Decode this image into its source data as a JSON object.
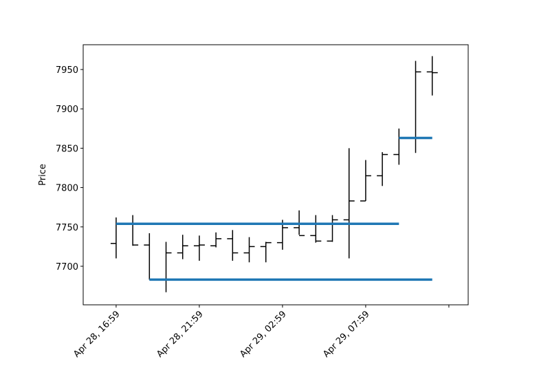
{
  "chart_data": {
    "type": "ohlc",
    "ylabel": "Price",
    "categories": [
      "Apr 28, 16:59",
      null,
      null,
      null,
      null,
      "Apr 28, 21:59",
      null,
      null,
      null,
      null,
      "Apr 29, 02:59",
      null,
      null,
      null,
      null,
      "Apr 29, 07:59",
      null,
      null,
      null,
      null
    ],
    "open": [
      7729,
      7754,
      7727,
      7683,
      7717,
      7726,
      7726,
      7735,
      7717,
      7725,
      7730,
      7749,
      7739,
      7732,
      7759,
      7783,
      7815,
      7842,
      7863,
      7947
    ],
    "high": [
      7762,
      7765,
      7742,
      7731,
      7740,
      7739,
      7743,
      7746,
      7737,
      7731,
      7759,
      7771,
      7765,
      7765,
      7850,
      7835,
      7845,
      7875,
      7961,
      7967
    ],
    "low": [
      7710,
      7726,
      7683,
      7667,
      7709,
      7707,
      7724,
      7707,
      7705,
      7705,
      7721,
      7740,
      7730,
      7731,
      7710,
      7783,
      7802,
      7829,
      7844,
      7917
    ],
    "close": [
      7754,
      7727,
      7683,
      7717,
      7726,
      7727,
      7735,
      7717,
      7725,
      7730,
      7749,
      7739,
      7732,
      7759,
      7783,
      7815,
      7842,
      7863,
      7947,
      7946
    ],
    "color": "#000000",
    "hlines": [
      {
        "value": 7754,
        "from": 0,
        "to": 17
      },
      {
        "value": 7683,
        "from": 2,
        "to": 19
      },
      {
        "value": 7863,
        "from": 17,
        "to": 19
      }
    ],
    "hline_color": "#1f77b4",
    "ylim": [
      7651,
      7981.5
    ],
    "yticks": [
      7700,
      7750,
      7800,
      7850,
      7900,
      7950
    ]
  }
}
